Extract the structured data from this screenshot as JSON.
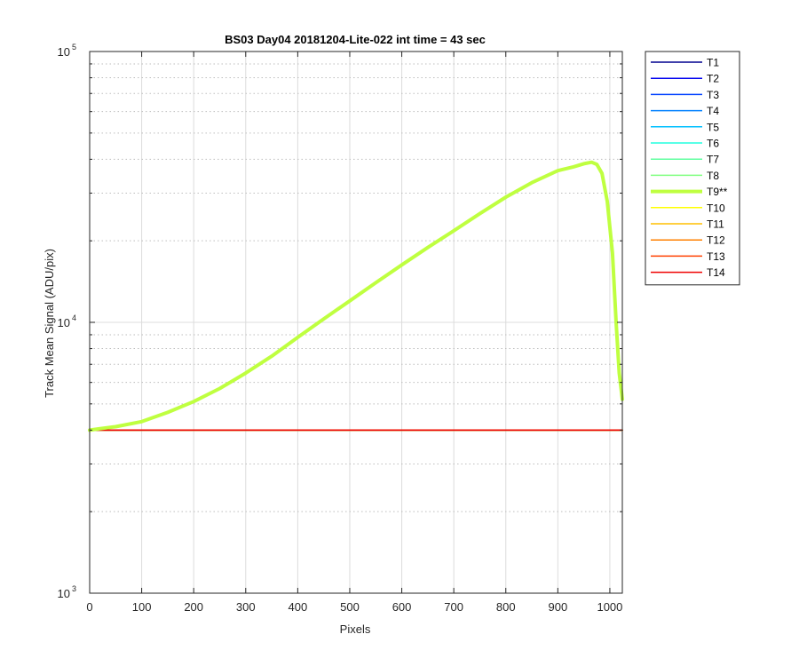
{
  "chart_data": {
    "type": "line",
    "title": "BS03 Day04 20181204-Lite-022 int time = 43 sec",
    "xlabel": "Pixels",
    "ylabel": "Track Mean Signal (ADU/pix)",
    "xlim": [
      0,
      1024
    ],
    "ylim": [
      1000,
      100000
    ],
    "yscale": "log",
    "grid": true,
    "x_ticks": [
      0,
      100,
      200,
      300,
      400,
      500,
      600,
      700,
      800,
      900,
      1000
    ],
    "x_tick_labels": [
      "0",
      "100",
      "200",
      "300",
      "400",
      "500",
      "600",
      "700",
      "800",
      "900",
      "1000"
    ],
    "y_major_ticks": [
      {
        "value": 1000,
        "base": "10",
        "exp": "3"
      },
      {
        "value": 10000,
        "base": "10",
        "exp": "4"
      },
      {
        "value": 100000,
        "base": "10",
        "exp": "5"
      }
    ],
    "legend_position": "outside-right-top",
    "series": [
      {
        "name": "T1",
        "color": "#00008f",
        "width": 1.5,
        "x": [
          0,
          1024
        ],
        "y": [
          4000,
          4000
        ]
      },
      {
        "name": "T2",
        "color": "#0000ef",
        "width": 1.5,
        "x": [
          0,
          1024
        ],
        "y": [
          4000,
          4000
        ]
      },
      {
        "name": "T3",
        "color": "#0040ff",
        "width": 1.5,
        "x": [
          0,
          1024
        ],
        "y": [
          4000,
          4000
        ]
      },
      {
        "name": "T4",
        "color": "#0080ff",
        "width": 1.5,
        "x": [
          0,
          1024
        ],
        "y": [
          4000,
          4000
        ]
      },
      {
        "name": "T5",
        "color": "#00bfff",
        "width": 1.5,
        "x": [
          0,
          1024
        ],
        "y": [
          4000,
          4000
        ]
      },
      {
        "name": "T6",
        "color": "#20ffdf",
        "width": 1.5,
        "x": [
          0,
          1024
        ],
        "y": [
          4000,
          4000
        ]
      },
      {
        "name": "T7",
        "color": "#60ffa0",
        "width": 1.5,
        "x": [
          0,
          1024
        ],
        "y": [
          4000,
          4000
        ]
      },
      {
        "name": "T8",
        "color": "#80ff80",
        "width": 1.5,
        "x": [
          0,
          1024
        ],
        "y": [
          4000,
          4000
        ]
      },
      {
        "name": "T9**",
        "color": "#bfff40",
        "width": 4,
        "x": [
          0,
          20,
          50,
          100,
          150,
          200,
          250,
          300,
          350,
          400,
          450,
          500,
          550,
          600,
          650,
          700,
          750,
          800,
          850,
          900,
          930,
          950,
          965,
          975,
          985,
          995,
          1005,
          1012,
          1018,
          1024
        ],
        "y": [
          4000,
          4050,
          4120,
          4300,
          4650,
          5100,
          5700,
          6500,
          7500,
          8800,
          10300,
          12000,
          14000,
          16300,
          18900,
          21800,
          25200,
          29000,
          32800,
          36300,
          37500,
          38500,
          39000,
          38300,
          35500,
          28000,
          18000,
          10000,
          6500,
          5200
        ]
      },
      {
        "name": "T10",
        "color": "#ffff00",
        "width": 1.5,
        "x": [
          0,
          1024
        ],
        "y": [
          4000,
          4000
        ]
      },
      {
        "name": "T11",
        "color": "#ffbf00",
        "width": 1.5,
        "x": [
          0,
          1024
        ],
        "y": [
          4000,
          4000
        ]
      },
      {
        "name": "T12",
        "color": "#ff8000",
        "width": 1.5,
        "x": [
          0,
          1024
        ],
        "y": [
          4000,
          4000
        ]
      },
      {
        "name": "T13",
        "color": "#ff4000",
        "width": 1.5,
        "x": [
          0,
          1024
        ],
        "y": [
          4000,
          4000
        ]
      },
      {
        "name": "T14",
        "color": "#ef0000",
        "width": 1.5,
        "x": [
          0,
          1024
        ],
        "y": [
          4000,
          4000
        ]
      }
    ]
  }
}
